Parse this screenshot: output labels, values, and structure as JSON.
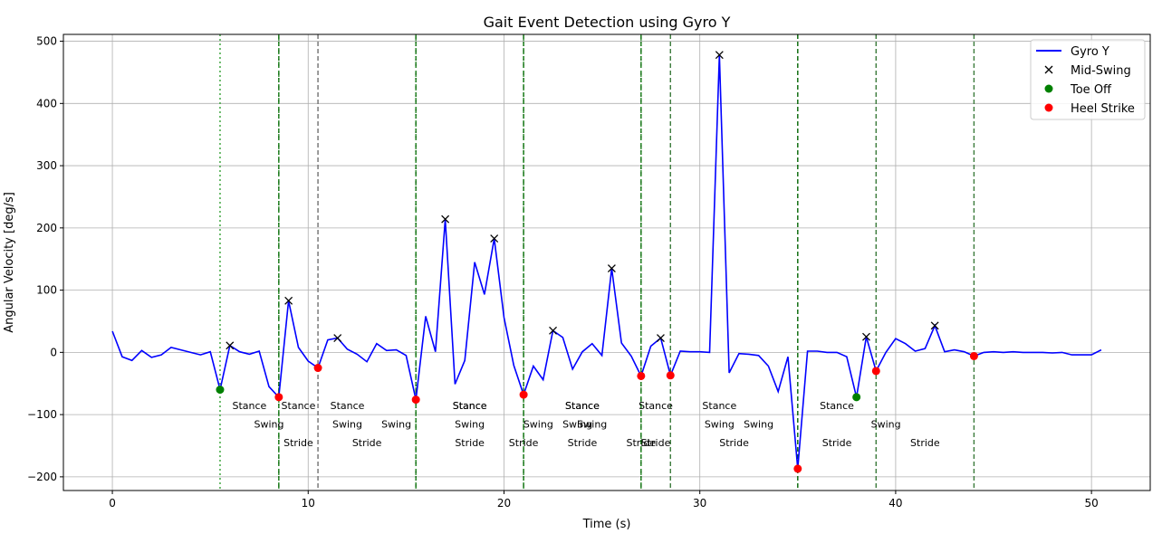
{
  "chart_data": {
    "type": "line",
    "title": "Gait Event Detection using Gyro Y",
    "xlabel": "Time (s)",
    "ylabel": "Angular Velocity [deg/s]",
    "xlim": [
      -2.5,
      53.0
    ],
    "ylim": [
      -222,
      511
    ],
    "xticks": [
      0,
      10,
      20,
      30,
      40,
      50
    ],
    "yticks": [
      -200,
      -100,
      0,
      100,
      200,
      300,
      400,
      500
    ],
    "grid": true,
    "legend_position": "upper-right",
    "series": [
      {
        "name": "Gyro Y",
        "color": "#0000ff",
        "x": [
          0,
          0.5,
          1,
          1.5,
          2,
          2.5,
          3,
          3.5,
          4,
          4.5,
          5,
          5.5,
          6,
          6.5,
          7,
          7.5,
          8,
          8.5,
          9,
          9.5,
          10,
          10.5,
          11,
          11.5,
          12,
          12.5,
          13,
          13.5,
          14,
          14.5,
          15,
          15.5,
          16,
          16.5,
          17,
          17.5,
          18,
          18.5,
          19,
          19.5,
          20,
          20.5,
          21,
          21.5,
          22,
          22.5,
          23,
          23.5,
          24,
          24.5,
          25,
          25.5,
          26,
          26.5,
          27,
          27.5,
          28,
          28.5,
          29,
          29.5,
          30,
          30.5,
          31,
          31.5,
          32,
          32.5,
          33,
          33.5,
          34,
          34.5,
          35,
          35.5,
          36,
          36.5,
          37,
          37.5,
          38,
          38.5,
          39,
          39.5,
          40,
          40.5,
          41,
          41.5,
          42,
          42.5,
          43,
          43.5,
          44,
          44.5,
          45,
          45.5,
          46,
          46.5,
          47,
          47.5,
          48,
          48.5,
          49,
          49.5,
          50,
          50.5
        ],
        "y": [
          34,
          -7,
          -13,
          3,
          -8,
          -4,
          8,
          4,
          0,
          -4,
          1,
          -60,
          11,
          1,
          -3,
          2,
          -55,
          -72,
          83,
          8,
          -14,
          -25,
          20,
          23,
          5,
          -3,
          -15,
          14,
          3,
          4,
          -5,
          -76,
          58,
          1,
          214,
          -51,
          -13,
          145,
          93,
          183,
          56,
          -21,
          -68,
          -22,
          -44,
          35,
          24,
          -27,
          1,
          14,
          -5,
          135,
          15,
          -6,
          -38,
          10,
          23,
          -37,
          2,
          1,
          1,
          0,
          478,
          -33,
          -2,
          -3,
          -5,
          -22,
          -63,
          -7,
          -187,
          2,
          2,
          0,
          0,
          -7,
          -72,
          25,
          -30,
          0,
          22,
          14,
          2,
          6,
          43,
          1,
          4,
          1,
          -6,
          0,
          1,
          0,
          1,
          0,
          0,
          0,
          -1,
          0,
          -4,
          -4,
          -4,
          4
        ]
      },
      {
        "name": "Mid-Swing",
        "marker": "x",
        "color": "#000000",
        "x": [
          6,
          9,
          11.5,
          17,
          19.5,
          22.5,
          25.5,
          28,
          31,
          38.5,
          42
        ],
        "y": [
          11,
          83,
          23,
          214,
          183,
          35,
          135,
          23,
          478,
          25,
          43
        ]
      },
      {
        "name": "Toe Off",
        "marker": "o",
        "color": "#008000",
        "x": [
          5.5,
          38
        ],
        "y": [
          -60,
          -72
        ]
      },
      {
        "name": "Heel Strike",
        "marker": "o",
        "color": "#ff0000",
        "x": [
          8.5,
          10.5,
          15.5,
          21,
          27,
          28.5,
          35,
          39,
          44
        ],
        "y": [
          -72,
          -25,
          -76,
          -68,
          -38,
          -37,
          -187,
          -30,
          -6
        ]
      }
    ],
    "vertical_lines": [
      {
        "x": 5.5,
        "color": "#33a033",
        "style": "dotted"
      },
      {
        "x": 8.5,
        "color": "#006400",
        "style": "dashed"
      },
      {
        "x": 8.5,
        "color": "#2a8a2a",
        "style": "dotted"
      },
      {
        "x": 10.5,
        "color": "#707070",
        "style": "dashed"
      },
      {
        "x": 15.5,
        "color": "#006400",
        "style": "dashed"
      },
      {
        "x": 15.5,
        "color": "#2a8a2a",
        "style": "dotted"
      },
      {
        "x": 21,
        "color": "#006400",
        "style": "dashed"
      },
      {
        "x": 21,
        "color": "#2a8a2a",
        "style": "dotted"
      },
      {
        "x": 27,
        "color": "#006400",
        "style": "dashed"
      },
      {
        "x": 27,
        "color": "#2a8a2a",
        "style": "dotted"
      },
      {
        "x": 28.5,
        "color": "#3a7a3a",
        "style": "dashed"
      },
      {
        "x": 35,
        "color": "#006400",
        "style": "dashed"
      },
      {
        "x": 39,
        "color": "#3a7a3a",
        "style": "dashed"
      },
      {
        "x": 44,
        "color": "#3a7a3a",
        "style": "dashed"
      }
    ],
    "phase_labels": [
      {
        "text": "Stance",
        "x": 7.0,
        "y": -85
      },
      {
        "text": "Swing",
        "x": 8.0,
        "y": -115
      },
      {
        "text": "Stride",
        "x": 9.5,
        "y": -145
      },
      {
        "text": "Stance",
        "x": 9.5,
        "y": -85
      },
      {
        "text": "Stance",
        "x": 12.0,
        "y": -85
      },
      {
        "text": "Swing",
        "x": 12.0,
        "y": -115
      },
      {
        "text": "Stride",
        "x": 13.0,
        "y": -145
      },
      {
        "text": "Swing",
        "x": 14.5,
        "y": -115
      },
      {
        "text": "Stance",
        "x": 18.25,
        "y": -85
      },
      {
        "text": "Stance",
        "x": 18.25,
        "y": -85
      },
      {
        "text": "Swing",
        "x": 18.25,
        "y": -115
      },
      {
        "text": "Stride",
        "x": 18.25,
        "y": -145
      },
      {
        "text": "Swing",
        "x": 21.75,
        "y": -115
      },
      {
        "text": "Stride",
        "x": 21.0,
        "y": -145
      },
      {
        "text": "Stance",
        "x": 24.0,
        "y": -85
      },
      {
        "text": "Stance",
        "x": 24.0,
        "y": -85
      },
      {
        "text": "Swing",
        "x": 23.75,
        "y": -115
      },
      {
        "text": "Swing",
        "x": 24.5,
        "y": -115
      },
      {
        "text": "Stride",
        "x": 24.0,
        "y": -145
      },
      {
        "text": "Stance",
        "x": 27.75,
        "y": -85
      },
      {
        "text": "Stride",
        "x": 27.0,
        "y": -145
      },
      {
        "text": "Stride",
        "x": 27.75,
        "y": -145
      },
      {
        "text": "Stance",
        "x": 31.0,
        "y": -85
      },
      {
        "text": "Swing",
        "x": 31.0,
        "y": -115
      },
      {
        "text": "Swing",
        "x": 33.0,
        "y": -115
      },
      {
        "text": "Stride",
        "x": 31.75,
        "y": -145
      },
      {
        "text": "Stance",
        "x": 37.0,
        "y": -85
      },
      {
        "text": "Stride",
        "x": 37.0,
        "y": -145
      },
      {
        "text": "Swing",
        "x": 39.5,
        "y": -115
      },
      {
        "text": "Stride",
        "x": 41.5,
        "y": -145
      }
    ]
  }
}
